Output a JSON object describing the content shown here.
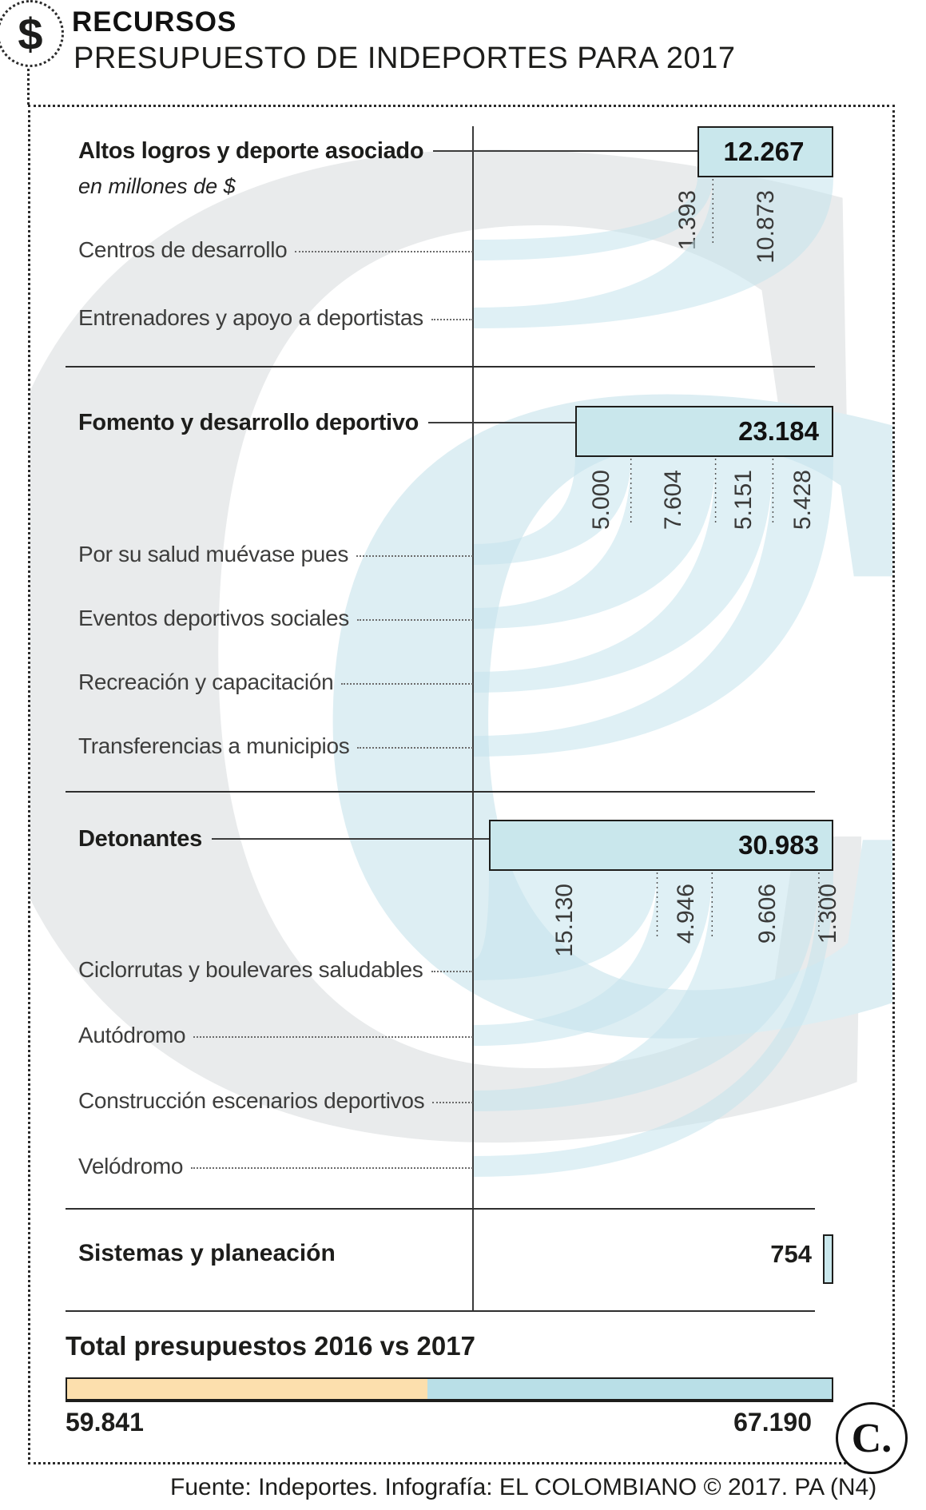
{
  "header": {
    "icon": "$",
    "kicker": "RECURSOS",
    "title": "PRESUPUESTO DE INDEPORTES PARA 2017"
  },
  "unit_note": "en millones de $",
  "sections": [
    {
      "title": "Altos logros y deporte asociado",
      "total_display": "12.267",
      "items": [
        {
          "label": "Centros de desarrollo",
          "value": "1.393"
        },
        {
          "label": "Entrenadores y apoyo a deportistas",
          "value": "10.873"
        }
      ]
    },
    {
      "title": "Fomento y desarrollo deportivo",
      "total_display": "23.184",
      "items": [
        {
          "label": "Por su salud muévase pues",
          "value": "5.000"
        },
        {
          "label": "Eventos deportivos sociales",
          "value": "7.604"
        },
        {
          "label": "Recreación y capacitación",
          "value": "5.151"
        },
        {
          "label": "Transferencias a municipios",
          "value": "5.428"
        }
      ]
    },
    {
      "title": "Detonantes",
      "total_display": "30.983",
      "items": [
        {
          "label": "Ciclorrutas y boulevares saludables",
          "value": "15.130"
        },
        {
          "label": "Autódromo",
          "value": "4.946"
        },
        {
          "label": "Construcción escenarios deportivos",
          "value": "9.606"
        },
        {
          "label": "Velódromo",
          "value": "1.300"
        }
      ]
    }
  ],
  "sistemas": {
    "label": "Sistemas y planeación",
    "value": "754"
  },
  "total_bar": {
    "title": "Total presupuestos 2016 vs 2017",
    "left_value": "59.841",
    "right_value": "67.190",
    "left_color": "#fcdfad",
    "right_color": "#b9dfe7"
  },
  "footer": "Fuente: Indeportes. Infografía: EL COLOMBIANO © 2017. PA (N4)",
  "logo_text": "C.",
  "colors": {
    "box_fill": "#c9e7ec",
    "flow": "#c5e4ec",
    "accent_orange": "#fcdfad",
    "accent_blue": "#b9dfe7"
  },
  "chart_data": {
    "type": "sankey-budget",
    "title": "Presupuesto de Indeportes para 2017",
    "unit": "millones de $",
    "groups": [
      {
        "name": "Altos logros y deporte asociado",
        "total": 12267,
        "children": [
          {
            "name": "Centros de desarrollo",
            "value": 1393
          },
          {
            "name": "Entrenadores y apoyo a deportistas",
            "value": 10873
          }
        ]
      },
      {
        "name": "Fomento y desarrollo deportivo",
        "total": 23184,
        "children": [
          {
            "name": "Por su salud muévase pues",
            "value": 5000
          },
          {
            "name": "Eventos deportivos sociales",
            "value": 7604
          },
          {
            "name": "Recreación y capacitación",
            "value": 5151
          },
          {
            "name": "Transferencias a municipios",
            "value": 5428
          }
        ]
      },
      {
        "name": "Detonantes",
        "total": 30983,
        "children": [
          {
            "name": "Ciclorrutas y boulevares saludables",
            "value": 15130
          },
          {
            "name": "Autódromo",
            "value": 4946
          },
          {
            "name": "Construcción escenarios deportivos",
            "value": 9606
          },
          {
            "name": "Velódromo",
            "value": 1300
          }
        ]
      },
      {
        "name": "Sistemas y planeación",
        "total": 754,
        "children": []
      }
    ],
    "comparison": {
      "title": "Total presupuestos 2016 vs 2017",
      "values": [
        {
          "year": 2016,
          "value": 59841
        },
        {
          "year": 2017,
          "value": 67190
        }
      ]
    }
  }
}
